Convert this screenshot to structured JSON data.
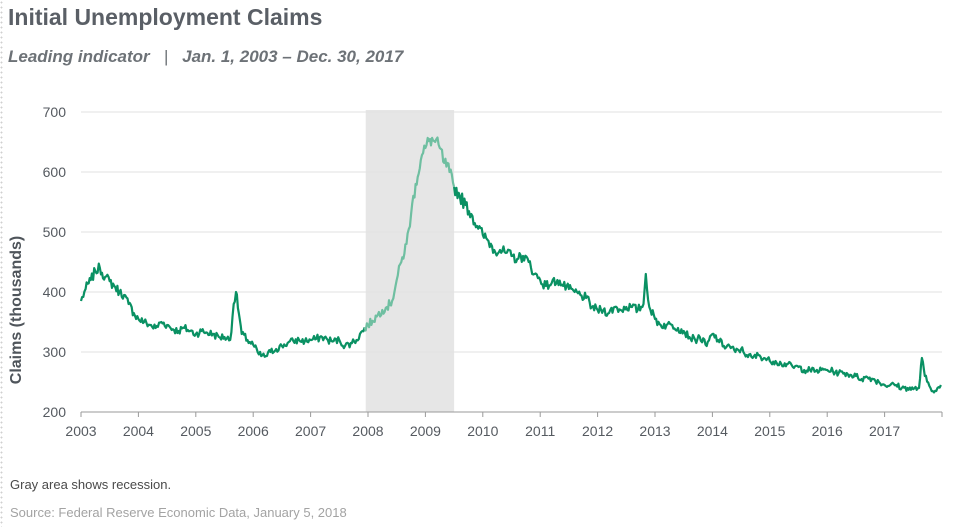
{
  "header": {
    "title": "Initial Unemployment Claims",
    "subtitle_left": "Leading indicator",
    "subtitle_sep": "|",
    "subtitle_right": "Jan. 1, 2003 – Dec. 30, 2017"
  },
  "footer": {
    "note": "Gray area shows recession.",
    "source": "Source: Federal Reserve Economic Data,  January 5, 2018"
  },
  "colors": {
    "line": "#0a9163",
    "line_recession": "#6fbfa1",
    "recession_fill": "#e6e6e6",
    "grid": "#e2e2e2",
    "axis": "#9a9a9a"
  },
  "chart_data": {
    "type": "line",
    "title": "Initial Unemployment Claims",
    "ylabel": "Claims (thousands)",
    "xlabel": "",
    "ylim": [
      200,
      700
    ],
    "xlim": [
      2003,
      2018
    ],
    "yticks": [
      200,
      300,
      400,
      500,
      600,
      700
    ],
    "xtick_labels": [
      "2003",
      "2004",
      "2005",
      "2006",
      "2007",
      "2008",
      "2009",
      "2010",
      "2011",
      "2012",
      "2013",
      "2014",
      "2015",
      "2016",
      "2017"
    ],
    "grid": "horizontal",
    "recession": {
      "start": 2007.96,
      "end": 2009.5
    },
    "series": [
      {
        "x": [
          2003.0,
          2003.08,
          2003.17,
          2003.25,
          2003.33,
          2003.42,
          2003.5,
          2003.58,
          2003.67,
          2003.75,
          2003.83,
          2003.92,
          2004.0,
          2004.1,
          2004.2,
          2004.3,
          2004.4,
          2004.5,
          2004.6,
          2004.7,
          2004.8,
          2004.9,
          2005.0,
          2005.1,
          2005.2,
          2005.3,
          2005.4,
          2005.5,
          2005.6,
          2005.66,
          2005.7,
          2005.75,
          2005.8,
          2005.9,
          2006.0,
          2006.1,
          2006.2,
          2006.3,
          2006.4,
          2006.5,
          2006.6,
          2006.7,
          2006.8,
          2006.9,
          2007.0,
          2007.1,
          2007.2,
          2007.3,
          2007.4,
          2007.5,
          2007.6,
          2007.7,
          2007.8,
          2007.9,
          2008.0,
          2008.08,
          2008.17,
          2008.25,
          2008.33,
          2008.42,
          2008.5,
          2008.58,
          2008.67,
          2008.75,
          2008.83,
          2008.92,
          2009.0,
          2009.08,
          2009.17,
          2009.25,
          2009.33,
          2009.42,
          2009.5,
          2009.6,
          2009.7,
          2009.8,
          2009.9,
          2010.0,
          2010.1,
          2010.2,
          2010.3,
          2010.4,
          2010.5,
          2010.6,
          2010.7,
          2010.8,
          2010.9,
          2011.0,
          2011.1,
          2011.2,
          2011.3,
          2011.4,
          2011.5,
          2011.6,
          2011.7,
          2011.8,
          2011.9,
          2012.0,
          2012.1,
          2012.2,
          2012.3,
          2012.4,
          2012.5,
          2012.6,
          2012.7,
          2012.8,
          2012.84,
          2012.9,
          2013.0,
          2013.1,
          2013.2,
          2013.3,
          2013.4,
          2013.5,
          2013.6,
          2013.7,
          2013.78,
          2013.9,
          2014.0,
          2014.1,
          2014.2,
          2014.3,
          2014.4,
          2014.5,
          2014.6,
          2014.7,
          2014.8,
          2014.9,
          2015.0,
          2015.1,
          2015.2,
          2015.3,
          2015.4,
          2015.5,
          2015.6,
          2015.7,
          2015.8,
          2015.9,
          2016.0,
          2016.1,
          2016.2,
          2016.3,
          2016.4,
          2016.5,
          2016.6,
          2016.7,
          2016.8,
          2016.9,
          2017.0,
          2017.1,
          2017.2,
          2017.3,
          2017.4,
          2017.5,
          2017.6,
          2017.65,
          2017.7,
          2017.8,
          2017.9,
          2017.98
        ],
        "values": [
          385,
          405,
          420,
          435,
          440,
          425,
          418,
          410,
          400,
          395,
          380,
          365,
          355,
          350,
          345,
          340,
          350,
          345,
          338,
          335,
          340,
          335,
          330,
          335,
          332,
          330,
          325,
          325,
          320,
          380,
          400,
          365,
          330,
          320,
          312,
          296,
          292,
          300,
          305,
          310,
          315,
          318,
          320,
          318,
          320,
          322,
          325,
          320,
          318,
          320,
          310,
          315,
          320,
          335,
          345,
          352,
          362,
          370,
          375,
          385,
          420,
          450,
          480,
          530,
          580,
          620,
          640,
          655,
          650,
          640,
          615,
          600,
          575,
          560,
          545,
          530,
          510,
          495,
          485,
          470,
          470,
          465,
          460,
          455,
          460,
          450,
          430,
          420,
          410,
          415,
          420,
          410,
          405,
          400,
          395,
          390,
          375,
          370,
          370,
          365,
          375,
          370,
          375,
          375,
          370,
          380,
          430,
          375,
          355,
          345,
          345,
          345,
          340,
          335,
          325,
          320,
          325,
          310,
          330,
          320,
          310,
          310,
          300,
          305,
          295,
          290,
          295,
          290,
          285,
          285,
          280,
          280,
          275,
          275,
          270,
          270,
          268,
          270,
          270,
          268,
          265,
          265,
          262,
          260,
          255,
          258,
          255,
          250,
          245,
          245,
          245,
          240,
          240,
          238,
          240,
          290,
          260,
          240,
          235,
          245
        ]
      }
    ]
  }
}
